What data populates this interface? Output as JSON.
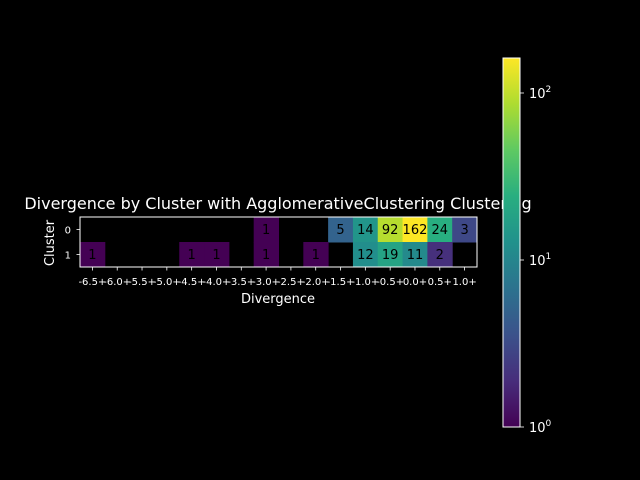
{
  "chart_data": {
    "type": "heatmap",
    "title": "Divergence by Cluster with AgglomerativeClustering Clustering",
    "xlabel": "Divergence",
    "ylabel": "Cluster",
    "x_categories": [
      "-6.5+",
      "-6.0+",
      "-5.5+",
      "-5.0+",
      "-4.5+",
      "-4.0+",
      "-3.5+",
      "-3.0+",
      "-2.5+",
      "-2.0+",
      "-1.5+",
      "-1.0+",
      "-0.5+",
      "0.0+",
      "0.5+",
      "1.0+"
    ],
    "y_categories": [
      "0",
      "1"
    ],
    "values": [
      [
        null,
        null,
        null,
        null,
        null,
        null,
        null,
        1,
        null,
        null,
        5,
        14,
        92,
        162,
        24,
        3
      ],
      [
        1,
        null,
        null,
        null,
        1,
        1,
        null,
        1,
        null,
        1,
        null,
        12,
        19,
        11,
        2,
        null
      ]
    ],
    "colorbar": {
      "scale": "log",
      "range": [
        1,
        162
      ],
      "tick_values": [
        1,
        10,
        100
      ],
      "tick_labels": [
        {
          "base": "10",
          "exp": "0"
        },
        {
          "base": "10",
          "exp": "1"
        },
        {
          "base": "10",
          "exp": "2"
        }
      ],
      "colormap": "viridis"
    }
  }
}
